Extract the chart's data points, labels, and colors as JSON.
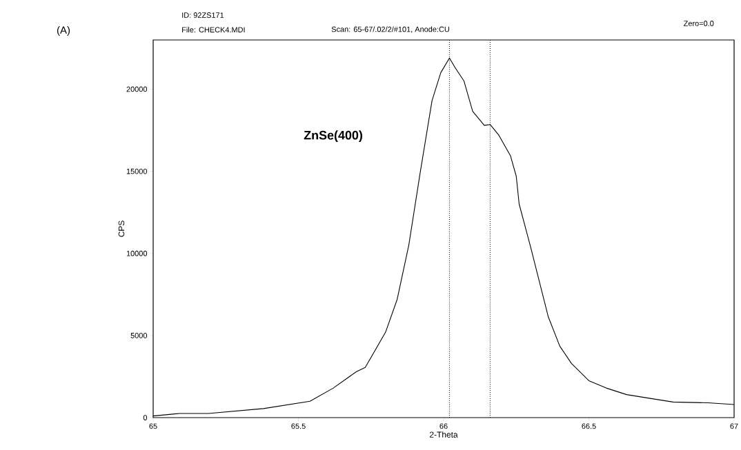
{
  "chart_data": {
    "type": "line",
    "title": "(A)",
    "xlabel": "2-Theta",
    "ylabel": "CPS",
    "annotations": [
      "ID: 92ZS171",
      "File: CHECK4.MDI",
      "Scan: 65-67/.02/2/#101, Anode:CU",
      "Zero=0.0",
      "ZnSe(400)"
    ],
    "xlim": [
      65,
      67
    ],
    "ylim": [
      0,
      23000
    ],
    "xticks": [
      65,
      65.5,
      66,
      66.5,
      67
    ],
    "yticks": [
      0,
      5000,
      10000,
      15000,
      20000
    ],
    "grid": false,
    "marker": "none",
    "line_style": "solid",
    "ref_lines": [
      {
        "axis": "x",
        "value": 66.02,
        "line_style": "dotted",
        "color": "#000000"
      },
      {
        "axis": "x",
        "value": 66.16,
        "line_style": "dotted",
        "color": "#000000"
      }
    ],
    "series": [
      {
        "color": "#000000",
        "x": [
          65.0,
          65.09,
          65.19,
          65.38,
          65.54,
          65.62,
          65.7,
          65.73,
          65.8,
          65.84,
          65.88,
          65.92,
          65.96,
          65.99,
          66.02,
          66.04,
          66.07,
          66.1,
          66.14,
          66.16,
          66.19,
          66.23,
          66.25,
          66.26,
          66.3,
          66.33,
          66.36,
          66.4,
          66.44,
          66.5,
          66.56,
          66.63,
          66.7,
          66.79,
          66.91,
          67.0
        ],
        "values": [
          100,
          250,
          250,
          550,
          1000,
          1800,
          2800,
          3050,
          5200,
          7200,
          10500,
          15000,
          19300,
          21000,
          21900,
          21300,
          20500,
          18650,
          17800,
          17850,
          17200,
          15950,
          14700,
          13000,
          10350,
          8250,
          6150,
          4350,
          3300,
          2250,
          1800,
          1400,
          1200,
          950,
          900,
          800
        ]
      }
    ]
  }
}
